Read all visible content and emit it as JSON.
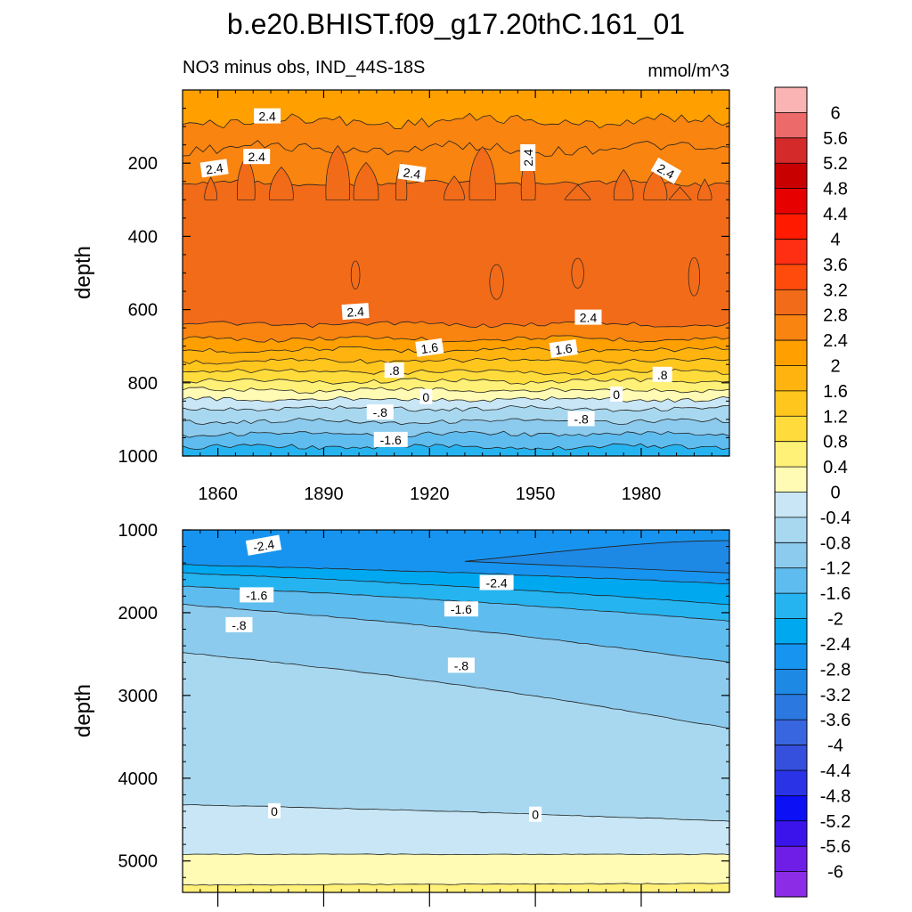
{
  "figure": {
    "title": "b.e20.BHIST.f09_g17.20thC.161_01",
    "left_subtitle": "NO3 minus obs, IND_44S-18S",
    "right_subtitle": "mmol/m^3"
  },
  "chart_data": [
    {
      "type": "contour",
      "panel": "upper",
      "variable": "NO3 minus obs",
      "region": "IND_44S-18S",
      "units": "mmol/m^3",
      "xlabel": "",
      "ylabel": "depth",
      "xlim": [
        1850,
        2005
      ],
      "ylim": [
        1000,
        0
      ],
      "xticks": [
        1860,
        1890,
        1920,
        1950,
        1980
      ],
      "xtick_labels": [
        "1860",
        "1890",
        "1920",
        "1950",
        "1980"
      ],
      "yticks": [
        200,
        400,
        600,
        800,
        1000
      ],
      "ytick_labels": [
        "200",
        "400",
        "600",
        "800",
        "1000"
      ],
      "bands": [
        {
          "from": 0,
          "to": 85,
          "level": 2.0
        },
        {
          "from": 85,
          "to": 160,
          "level": 2.4
        },
        {
          "from": 160,
          "to": 255,
          "level": 2.4
        },
        {
          "from": 255,
          "to": 640,
          "level": 2.8
        },
        {
          "from": 640,
          "to": 680,
          "level": 2.4
        },
        {
          "from": 680,
          "to": 710,
          "level": 2.0
        },
        {
          "from": 710,
          "to": 740,
          "level": 1.6
        },
        {
          "from": 740,
          "to": 770,
          "level": 1.2
        },
        {
          "from": 770,
          "to": 795,
          "level": 0.8
        },
        {
          "from": 795,
          "to": 820,
          "level": 0.4
        },
        {
          "from": 820,
          "to": 845,
          "level": 0.0
        },
        {
          "from": 845,
          "to": 870,
          "level": -0.4
        },
        {
          "from": 870,
          "to": 905,
          "level": -0.8
        },
        {
          "from": 905,
          "to": 940,
          "level": -1.2
        },
        {
          "from": 940,
          "to": 975,
          "level": -1.6
        },
        {
          "from": 975,
          "to": 1000,
          "level": -2.0
        }
      ],
      "contour_labels": [
        {
          "text": "2.4",
          "x": 1874,
          "y": 72,
          "angle": 0
        },
        {
          "text": "2.4",
          "x": 1871,
          "y": 183,
          "angle": 0
        },
        {
          "text": "2.4",
          "x": 1859,
          "y": 215,
          "angle": -8
        },
        {
          "text": "2.4",
          "x": 1915,
          "y": 228,
          "angle": 8
        },
        {
          "text": "2.4",
          "x": 1948,
          "y": 185,
          "angle": -90
        },
        {
          "text": "2.4",
          "x": 1987,
          "y": 222,
          "angle": 30
        },
        {
          "text": "2.4",
          "x": 1899,
          "y": 606,
          "angle": -4
        },
        {
          "text": "2.4",
          "x": 1965,
          "y": 622,
          "angle": 0
        },
        {
          "text": "1.6",
          "x": 1920,
          "y": 705,
          "angle": -8
        },
        {
          "text": "1.6",
          "x": 1958,
          "y": 708,
          "angle": -8
        },
        {
          "text": ".8",
          "x": 1910,
          "y": 767,
          "angle": 0
        },
        {
          "text": ".8",
          "x": 1986,
          "y": 778,
          "angle": 0
        },
        {
          "text": "0",
          "x": 1919,
          "y": 839,
          "angle": 0
        },
        {
          "text": "0",
          "x": 1973,
          "y": 832,
          "angle": 0
        },
        {
          "text": "-.8",
          "x": 1906,
          "y": 881,
          "angle": 0
        },
        {
          "text": "-.8",
          "x": 1963,
          "y": 899,
          "angle": 0
        },
        {
          "text": "-1.6",
          "x": 1909,
          "y": 956,
          "angle": 0
        }
      ]
    },
    {
      "type": "contour",
      "panel": "lower",
      "variable": "NO3 minus obs",
      "region": "IND_44S-18S",
      "units": "mmol/m^3",
      "xlabel": "",
      "ylabel": "depth",
      "xlim": [
        1850,
        2005
      ],
      "ylim": [
        5380,
        1000
      ],
      "xticks": [
        1860,
        1890,
        1920,
        1950,
        1980
      ],
      "yticks": [
        1000,
        2000,
        3000,
        4000,
        5000
      ],
      "ytick_labels": [
        "1000",
        "2000",
        "3000",
        "4000",
        "5000"
      ],
      "contour_levels": [
        {
          "level": -2.4,
          "depth_start": 1420,
          "depth_end": 1650
        },
        {
          "level": -2.0,
          "depth_start": 1520,
          "depth_end": 1900
        },
        {
          "level": -1.6,
          "depth_start": 1680,
          "depth_end": 2100
        },
        {
          "level": -1.2,
          "depth_start": 1900,
          "depth_end": 2600
        },
        {
          "level": -0.8,
          "depth_start": 2480,
          "depth_end": 3400
        },
        {
          "level": -0.4,
          "depth_start": 4320,
          "depth_end": 4520
        },
        {
          "level": 0.0,
          "depth_start": 4920,
          "depth_end": 4920
        },
        {
          "level": 0.4,
          "depth_start": 5290,
          "depth_end": 5270
        }
      ],
      "contour_labels": [
        {
          "text": "-2.4",
          "x": 1873,
          "y": 1190,
          "angle": -10
        },
        {
          "text": "-2.4",
          "x": 1939,
          "y": 1640,
          "angle": 0
        },
        {
          "text": "-1.6",
          "x": 1871,
          "y": 1790,
          "angle": 0
        },
        {
          "text": "-1.6",
          "x": 1929,
          "y": 1960,
          "angle": 0
        },
        {
          "text": "-.8",
          "x": 1866,
          "y": 2150,
          "angle": 0
        },
        {
          "text": "-.8",
          "x": 1929,
          "y": 2640,
          "angle": 0
        },
        {
          "text": "0",
          "x": 1876,
          "y": 4400,
          "angle": 0
        },
        {
          "text": "0",
          "x": 1950,
          "y": 4440,
          "angle": 0
        }
      ]
    }
  ],
  "colorbar": {
    "labels": [
      "6",
      "5.6",
      "5.2",
      "4.8",
      "4.4",
      "4",
      "3.6",
      "3.2",
      "2.8",
      "2.4",
      "2",
      "1.6",
      "1.2",
      "0.8",
      "0.4",
      "0",
      "-0.4",
      "-0.8",
      "-1.2",
      "-1.6",
      "-2",
      "-2.4",
      "-2.8",
      "-3.2",
      "-3.6",
      "-4",
      "-4.4",
      "-4.8",
      "-5.2",
      "-5.6",
      "-6"
    ],
    "levels": [
      6,
      5.6,
      5.2,
      4.8,
      4.4,
      4,
      3.6,
      3.2,
      2.8,
      2.4,
      2,
      1.6,
      1.2,
      0.8,
      0.4,
      0,
      -0.4,
      -0.8,
      -1.2,
      -1.6,
      -2,
      -2.4,
      -2.8,
      -3.2,
      -3.6,
      -4,
      -4.4,
      -4.8,
      -5.2,
      -5.6,
      -6
    ],
    "colors": [
      "#fbb4b4",
      "#ec6a6a",
      "#d42a2a",
      "#c80000",
      "#e60000",
      "#ff1a00",
      "#ff2f14",
      "#ff4c0c",
      "#f26b18",
      "#f98410",
      "#ff9f00",
      "#ffb30f",
      "#ffc61e",
      "#ffdc3c",
      "#fff078",
      "#fffab4",
      "#c8e6f5",
      "#a8d8ef",
      "#8ccbee",
      "#5fbcef",
      "#26b4f0",
      "#00a8f0",
      "#1794ef",
      "#1e88e5",
      "#2a78e0",
      "#3866e0",
      "#3450dc",
      "#2a34e6",
      "#0c10f4",
      "#3a14ea",
      "#6e1ee6",
      "#8c2ce6"
    ]
  }
}
